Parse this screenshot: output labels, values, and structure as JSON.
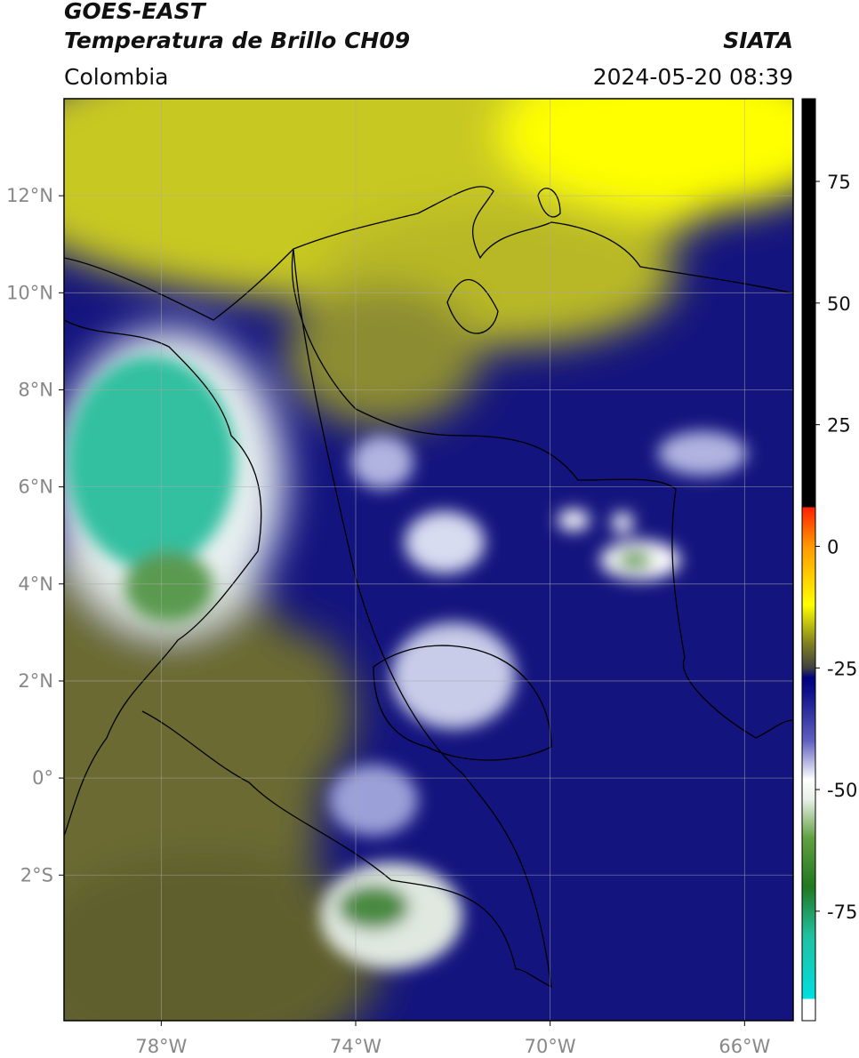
{
  "header": {
    "title": "GOES-EAST",
    "subtitle": "Temperatura de Brillo CH09",
    "brand": "SIATA",
    "region": "Colombia",
    "datetime": "2024-05-20 08:39"
  },
  "map": {
    "xlim": [
      -80,
      -65
    ],
    "ylim": [
      -5,
      14
    ],
    "xticks": [
      {
        "value": -78,
        "label": "78°W"
      },
      {
        "value": -74,
        "label": "74°W"
      },
      {
        "value": -70,
        "label": "70°W"
      },
      {
        "value": -66,
        "label": "66°W"
      }
    ],
    "yticks": [
      {
        "value": 12,
        "label": "12°N"
      },
      {
        "value": 10,
        "label": "10°N"
      },
      {
        "value": 8,
        "label": "8°N"
      },
      {
        "value": 6,
        "label": "6°N"
      },
      {
        "value": 4,
        "label": "4°N"
      },
      {
        "value": 2,
        "label": "2°N"
      },
      {
        "value": 0,
        "label": "0°"
      },
      {
        "value": -2,
        "label": "2°S"
      }
    ],
    "grid": true
  },
  "colorbar": {
    "lim": [
      -97.5,
      92
    ],
    "ticks": [
      75,
      50,
      25,
      0,
      -25,
      -50,
      -75
    ],
    "stops": [
      [
        -97.5,
        "#ffffff"
      ],
      [
        -93,
        "#ffffff"
      ],
      [
        -93,
        "#00e0e0"
      ],
      [
        -80,
        "#20c0a0"
      ],
      [
        -70,
        "#207820"
      ],
      [
        -60,
        "#60a040"
      ],
      [
        -52,
        "#e8f0e8"
      ],
      [
        -48,
        "#ffffff"
      ],
      [
        -40,
        "#6060c0"
      ],
      [
        -30,
        "#10108a"
      ],
      [
        -27,
        "#000080"
      ],
      [
        -25,
        "#404040"
      ],
      [
        -20,
        "#808020"
      ],
      [
        -12,
        "#ffff00"
      ],
      [
        0,
        "#ff9900"
      ],
      [
        8,
        "#ff2000"
      ],
      [
        8,
        "#000000"
      ],
      [
        92,
        "#000000"
      ]
    ]
  }
}
